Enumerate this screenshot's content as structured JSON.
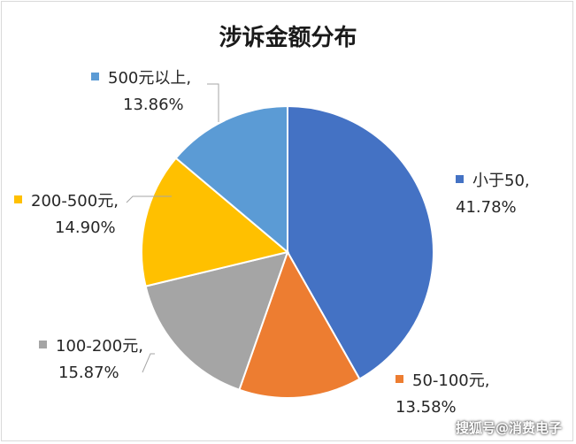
{
  "chart_data": {
    "type": "pie",
    "title": "涉诉金额分布",
    "slices": [
      {
        "name": "小于50",
        "value": 41.78,
        "pct_label": "41.78%",
        "color": "#4472c4"
      },
      {
        "name": "50-100元",
        "value": 13.58,
        "pct_label": "13.58%",
        "color": "#ed7d31"
      },
      {
        "name": "100-200元",
        "value": 15.87,
        "pct_label": "15.87%",
        "color": "#a5a5a5"
      },
      {
        "name": "200-500元",
        "value": 14.9,
        "pct_label": "14.90%",
        "color": "#ffc000"
      },
      {
        "name": "500元以上",
        "value": 13.86,
        "pct_label": "13.86%",
        "color": "#5b9bd5"
      }
    ],
    "label_separator": ","
  },
  "watermark": "搜狐号@消费电子"
}
